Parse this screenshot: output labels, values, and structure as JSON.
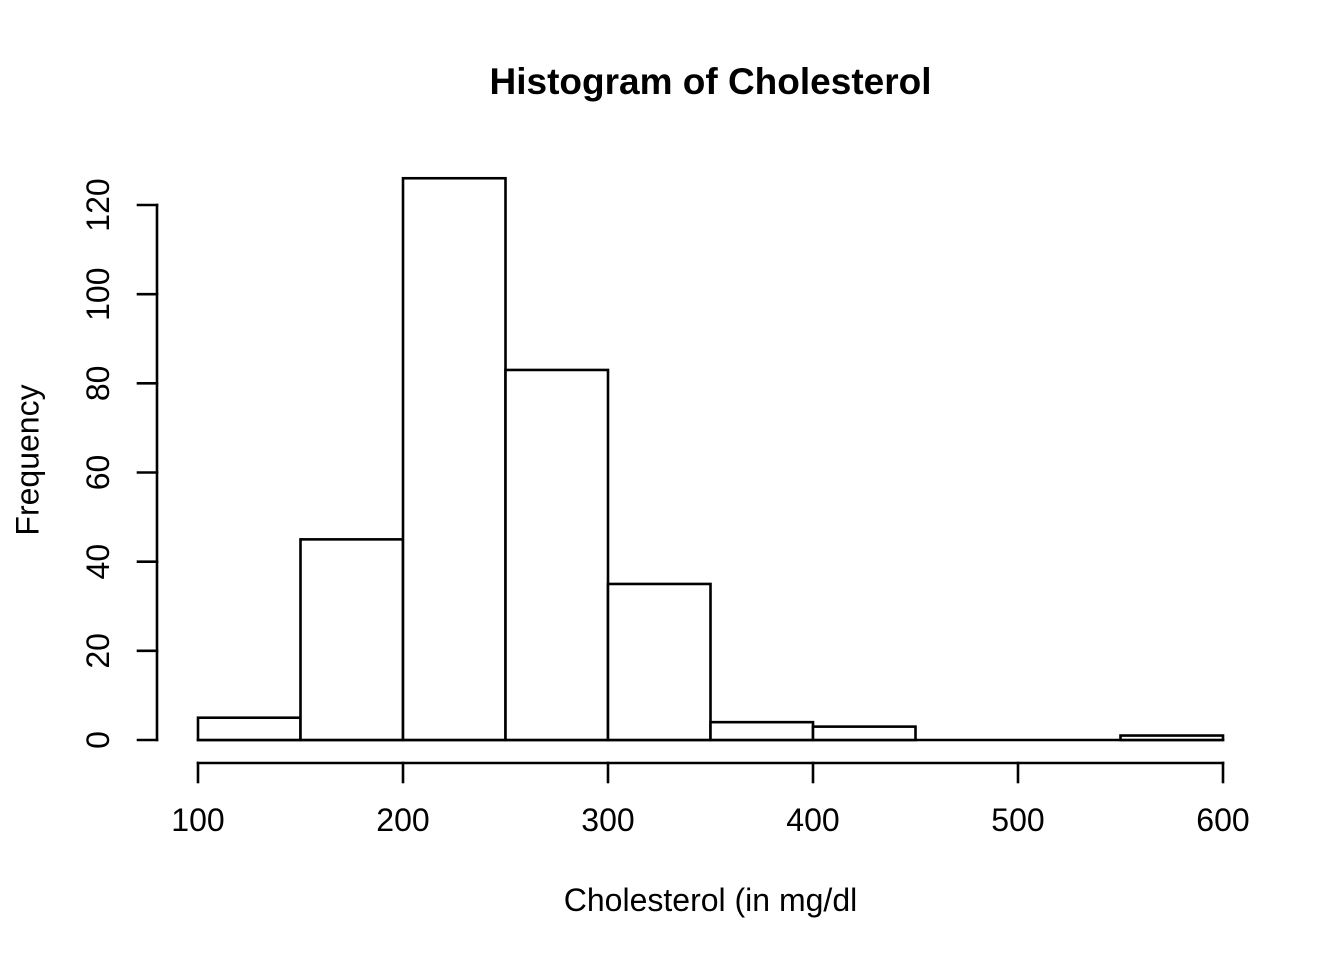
{
  "chart_data": {
    "type": "bar",
    "subtype": "histogram",
    "title": "Histogram of Cholesterol",
    "xlabel": "Cholesterol (in mg/dl",
    "ylabel": "Frequency",
    "bin_edges": [
      100,
      150,
      200,
      250,
      300,
      350,
      400,
      450,
      500,
      550,
      600
    ],
    "values": [
      5,
      45,
      126,
      83,
      35,
      4,
      3,
      0,
      0,
      1
    ],
    "x_ticks": [
      100,
      200,
      300,
      400,
      500,
      600
    ],
    "y_ticks": [
      0,
      20,
      40,
      60,
      80,
      100,
      120
    ],
    "xlim": [
      100,
      600
    ],
    "ylim": [
      0,
      120
    ],
    "grid": false,
    "legend": "none",
    "colors": {
      "background": "#ffffff",
      "bar_fill": "#ffffff",
      "bar_stroke": "#000000",
      "axis": "#000000",
      "text": "#000000"
    }
  }
}
